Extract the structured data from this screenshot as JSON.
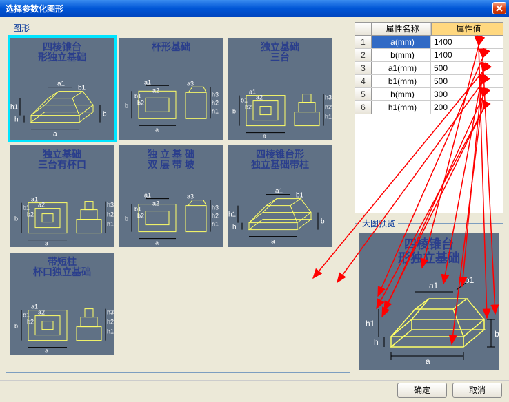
{
  "window": {
    "title": "选择参数化图形"
  },
  "shapes_panel": {
    "legend": "图形"
  },
  "shapes": [
    {
      "title": "四棱锥台\n形独立基础",
      "selected": true
    },
    {
      "title": "杯形基础",
      "selected": false
    },
    {
      "title": "独立基础\n三台",
      "selected": false
    },
    {
      "title": "独立基础\n三台有杯口",
      "selected": false
    },
    {
      "title": "独 立 基 础\n双 层 带 坡",
      "selected": false
    },
    {
      "title": "四棱锥台形\n独立基础带柱",
      "selected": false
    },
    {
      "title": "带短柱\n杯口独立基础",
      "selected": false
    }
  ],
  "prop_table": {
    "headers": {
      "name": "属性名称",
      "value": "属性值"
    },
    "rows": [
      {
        "i": "1",
        "name": "a(mm)",
        "value": "1400",
        "selected": true
      },
      {
        "i": "2",
        "name": "b(mm)",
        "value": "1400"
      },
      {
        "i": "3",
        "name": "a1(mm)",
        "value": "500"
      },
      {
        "i": "4",
        "name": "b1(mm)",
        "value": "500"
      },
      {
        "i": "5",
        "name": "h(mm)",
        "value": "300"
      },
      {
        "i": "6",
        "name": "h1(mm)",
        "value": "200"
      }
    ]
  },
  "preview": {
    "legend": "大图预览",
    "title": "四棱锥台\n形独立基础"
  },
  "buttons": {
    "ok": "确定",
    "cancel": "取消"
  },
  "colors": {
    "thumb_bg": "#607185",
    "thumb_text": "#2a3e8c",
    "selected_outline": "#00e5ff",
    "titlebar_start": "#3a8cef",
    "titlebar_end": "#0046c0",
    "value_header_bg": "#ffd880",
    "row_sel_bg": "#316ac5",
    "arrow_color": "#ff0000",
    "dim_line": "#000000",
    "shape_line": "#ffff66"
  },
  "annotation_arrows": [
    {
      "from": [
        694,
        66
      ],
      "to": [
        612,
        389
      ]
    },
    {
      "from": [
        694,
        66
      ],
      "to": [
        706,
        462
      ]
    },
    {
      "from": [
        700,
        84
      ],
      "to": [
        548,
        430
      ]
    },
    {
      "from": [
        700,
        84
      ],
      "to": [
        718,
        456
      ]
    },
    {
      "from": [
        700,
        104
      ],
      "to": [
        643,
        412
      ]
    },
    {
      "from": [
        700,
        104
      ],
      "to": [
        454,
        404
      ]
    },
    {
      "from": [
        698,
        122
      ],
      "to": [
        489,
        410
      ]
    },
    {
      "from": [
        698,
        122
      ],
      "to": [
        670,
        416
      ]
    },
    {
      "from": [
        700,
        141
      ],
      "to": [
        655,
        500
      ]
    },
    {
      "from": [
        700,
        141
      ],
      "to": [
        554,
        460
      ]
    },
    {
      "from": [
        700,
        160
      ],
      "to": [
        546,
        448
      ]
    },
    {
      "from": [
        700,
        160
      ],
      "to": [
        557,
        451
      ]
    }
  ]
}
